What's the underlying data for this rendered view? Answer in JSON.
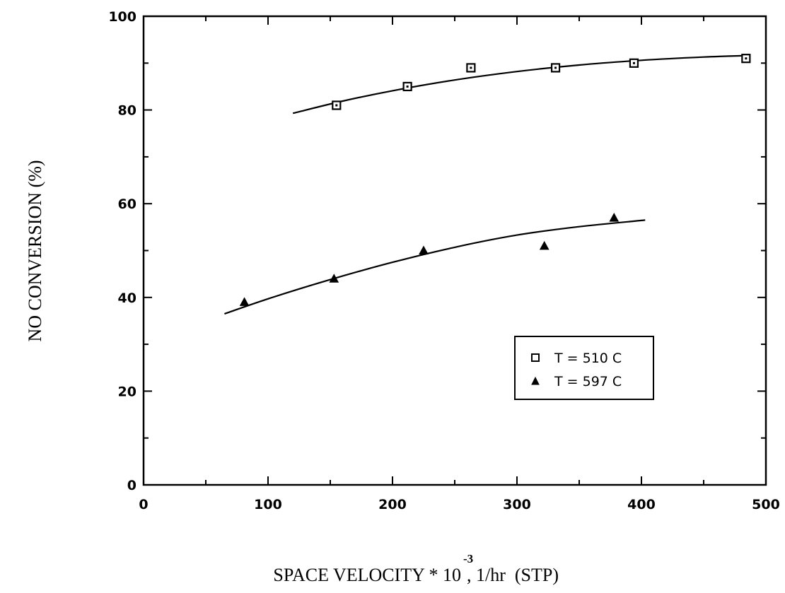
{
  "chart_data": {
    "type": "scatter",
    "title": "",
    "xlabel": "SPACE VELOCITY * 10",
    "xlabel_exponent": "-3",
    "xlabel_suffix": ", 1/hr  (STP)",
    "ylabel": "NO CONVERSION (%)",
    "xlim": [
      0,
      500
    ],
    "ylim": [
      0,
      100
    ],
    "x_major_ticks": [
      0,
      100,
      200,
      300,
      400,
      500
    ],
    "x_tick_labels": [
      "0",
      "100",
      "200",
      "300",
      "400",
      "500"
    ],
    "y_major_ticks": [
      0,
      20,
      40,
      60,
      80,
      100
    ],
    "y_tick_labels": [
      "0",
      "20",
      "40",
      "60",
      "80",
      "100"
    ],
    "grid": false,
    "legend_position": "lower-right",
    "series": [
      {
        "name": "T = 510 C",
        "marker": "square",
        "x": [
          155,
          212,
          263,
          331,
          394,
          484
        ],
        "y": [
          81,
          85,
          89,
          89,
          90,
          91
        ],
        "fit_curve_x": [
          120,
          160,
          200,
          250,
          300,
          350,
          400,
          450,
          485
        ],
        "fit_curve_y": [
          79.3,
          81.9,
          84.1,
          86.4,
          88.2,
          89.6,
          90.6,
          91.3,
          91.6
        ]
      },
      {
        "name": "T = 597 C",
        "marker": "triangle",
        "x": [
          81,
          153,
          225,
          322,
          378
        ],
        "y": [
          39,
          44,
          50,
          51,
          57
        ],
        "fit_curve_x": [
          65,
          100,
          150,
          200,
          250,
          300,
          350,
          403
        ],
        "fit_curve_y": [
          36.5,
          39.7,
          43.8,
          47.5,
          50.7,
          53.3,
          55.1,
          56.5
        ]
      }
    ]
  }
}
